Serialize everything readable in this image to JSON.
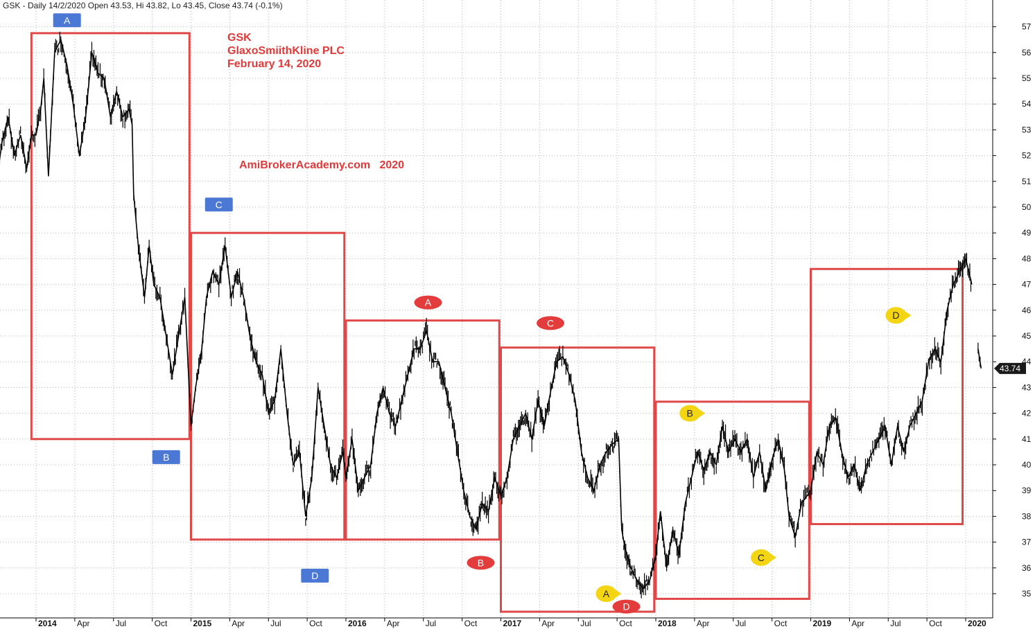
{
  "header": {
    "text": "GSK - Daily 14/2/2020 Open 43.53, Hi 43.82, Lo 43.45, Close 43.74 (-0.1%)"
  },
  "annotations": {
    "title_lines": [
      "GSK",
      "GlaxoSmiithKline PLC",
      "February 14, 2020"
    ],
    "watermark": "AmiBrokerAcademy.com   2020"
  },
  "price_tag": "43.74",
  "colors": {
    "price_line": "#000000",
    "box": "#e04848",
    "blue_label": "#4a78d4",
    "red_label": "#e23c3c",
    "yellow_label": "#f3d514",
    "grid": "#b5b5b5",
    "price_tag_bg": "#1a1a1a"
  },
  "chart_data": {
    "type": "line",
    "title": "GSK",
    "xlabel": "",
    "ylabel": "",
    "ylim": [
      34.5,
      57.5
    ],
    "grid": true,
    "y_ticks": [
      35,
      36,
      37,
      38,
      39,
      40,
      41,
      42,
      43,
      44,
      45,
      46,
      47,
      48,
      49,
      50,
      51,
      52,
      53,
      54,
      55,
      56,
      57
    ],
    "x_ticks": [
      {
        "label": "2014",
        "t": 2014.0,
        "year": true
      },
      {
        "label": "Apr",
        "t": 2014.25
      },
      {
        "label": "Jul",
        "t": 2014.5
      },
      {
        "label": "Oct",
        "t": 2014.75
      },
      {
        "label": "2015",
        "t": 2015.0,
        "year": true
      },
      {
        "label": "Apr",
        "t": 2015.25
      },
      {
        "label": "Jul",
        "t": 2015.5
      },
      {
        "label": "Oct",
        "t": 2015.75
      },
      {
        "label": "2016",
        "t": 2016.0,
        "year": true
      },
      {
        "label": "Apr",
        "t": 2016.25
      },
      {
        "label": "Jul",
        "t": 2016.5
      },
      {
        "label": "Oct",
        "t": 2016.75
      },
      {
        "label": "2017",
        "t": 2017.0,
        "year": true
      },
      {
        "label": "Apr",
        "t": 2017.25
      },
      {
        "label": "Jul",
        "t": 2017.5
      },
      {
        "label": "Oct",
        "t": 2017.75
      },
      {
        "label": "2018",
        "t": 2018.0,
        "year": true
      },
      {
        "label": "Apr",
        "t": 2018.25
      },
      {
        "label": "Jul",
        "t": 2018.5
      },
      {
        "label": "Oct",
        "t": 2018.75
      },
      {
        "label": "2019",
        "t": 2019.0,
        "year": true
      },
      {
        "label": "Apr",
        "t": 2019.25
      },
      {
        "label": "Jul",
        "t": 2019.5
      },
      {
        "label": "Oct",
        "t": 2019.75
      },
      {
        "label": "2020",
        "t": 2020.0,
        "year": true
      }
    ],
    "series": [
      {
        "values": [
          [
            2013.75,
            51.2
          ],
          [
            2013.78,
            52.5
          ],
          [
            2013.82,
            53.5
          ],
          [
            2013.86,
            52.0
          ],
          [
            2013.9,
            52.8
          ],
          [
            2013.94,
            51.5
          ],
          [
            2013.97,
            52.8
          ],
          [
            2014.0,
            52.8
          ],
          [
            2014.03,
            53.8
          ],
          [
            2014.05,
            55.0
          ],
          [
            2014.08,
            51.2
          ],
          [
            2014.12,
            56.0
          ],
          [
            2014.16,
            56.5
          ],
          [
            2014.2,
            55.5
          ],
          [
            2014.24,
            54.0
          ],
          [
            2014.28,
            52.0
          ],
          [
            2014.32,
            53.5
          ],
          [
            2014.36,
            56.0
          ],
          [
            2014.4,
            55.2
          ],
          [
            2014.44,
            55.0
          ],
          [
            2014.48,
            53.5
          ],
          [
            2014.52,
            54.5
          ],
          [
            2014.56,
            53.5
          ],
          [
            2014.6,
            53.8
          ],
          [
            2014.62,
            53.2
          ],
          [
            2014.63,
            50.5
          ],
          [
            2014.66,
            48.5
          ],
          [
            2014.7,
            46.5
          ],
          [
            2014.73,
            48.5
          ],
          [
            2014.76,
            47.0
          ],
          [
            2014.8,
            46.5
          ],
          [
            2014.84,
            45.0
          ],
          [
            2014.88,
            43.5
          ],
          [
            2014.92,
            45.0
          ],
          [
            2014.96,
            46.5
          ],
          [
            2015.0,
            41.5
          ],
          [
            2015.03,
            43.0
          ],
          [
            2015.07,
            44.5
          ],
          [
            2015.1,
            46.5
          ],
          [
            2015.14,
            47.5
          ],
          [
            2015.18,
            47.0
          ],
          [
            2015.22,
            48.5
          ],
          [
            2015.26,
            46.5
          ],
          [
            2015.3,
            47.5
          ],
          [
            2015.34,
            46.5
          ],
          [
            2015.38,
            45.0
          ],
          [
            2015.42,
            44.0
          ],
          [
            2015.46,
            43.5
          ],
          [
            2015.5,
            42.0
          ],
          [
            2015.54,
            42.5
          ],
          [
            2015.58,
            44.5
          ],
          [
            2015.62,
            42.0
          ],
          [
            2015.66,
            40.0
          ],
          [
            2015.7,
            40.5
          ],
          [
            2015.74,
            38.0
          ],
          [
            2015.78,
            39.5
          ],
          [
            2015.82,
            43.0
          ],
          [
            2015.86,
            41.5
          ],
          [
            2015.9,
            40.0
          ],
          [
            2015.94,
            39.5
          ],
          [
            2015.98,
            40.5
          ],
          [
            2016.0,
            39.5
          ],
          [
            2016.04,
            41.0
          ],
          [
            2016.08,
            39.0
          ],
          [
            2016.12,
            39.5
          ],
          [
            2016.16,
            40.0
          ],
          [
            2016.2,
            42.0
          ],
          [
            2016.24,
            43.0
          ],
          [
            2016.28,
            42.0
          ],
          [
            2016.32,
            41.5
          ],
          [
            2016.36,
            42.5
          ],
          [
            2016.4,
            43.5
          ],
          [
            2016.44,
            44.5
          ],
          [
            2016.48,
            44.5
          ],
          [
            2016.52,
            45.2
          ],
          [
            2016.56,
            44.0
          ],
          [
            2016.6,
            44.0
          ],
          [
            2016.64,
            43.0
          ],
          [
            2016.68,
            42.0
          ],
          [
            2016.72,
            40.5
          ],
          [
            2016.76,
            39.0
          ],
          [
            2016.8,
            38.0
          ],
          [
            2016.84,
            37.5
          ],
          [
            2016.88,
            38.5
          ],
          [
            2016.92,
            38.2
          ],
          [
            2016.96,
            39.5
          ],
          [
            2017.0,
            38.8
          ],
          [
            2017.04,
            39.5
          ],
          [
            2017.08,
            41.0
          ],
          [
            2017.12,
            41.5
          ],
          [
            2017.16,
            42.0
          ],
          [
            2017.2,
            41.0
          ],
          [
            2017.24,
            42.5
          ],
          [
            2017.28,
            41.5
          ],
          [
            2017.32,
            42.8
          ],
          [
            2017.36,
            44.0
          ],
          [
            2017.4,
            44.2
          ],
          [
            2017.44,
            43.5
          ],
          [
            2017.48,
            42.5
          ],
          [
            2017.52,
            40.5
          ],
          [
            2017.56,
            39.5
          ],
          [
            2017.6,
            39.0
          ],
          [
            2017.64,
            40.0
          ],
          [
            2017.68,
            40.5
          ],
          [
            2017.72,
            40.8
          ],
          [
            2017.76,
            41.0
          ],
          [
            2017.78,
            37.5
          ],
          [
            2017.8,
            36.8
          ],
          [
            2017.84,
            36.0
          ],
          [
            2017.88,
            35.5
          ],
          [
            2017.92,
            35.2
          ],
          [
            2017.96,
            35.5
          ],
          [
            2018.0,
            36.5
          ],
          [
            2018.03,
            38.2
          ],
          [
            2018.07,
            36.0
          ],
          [
            2018.11,
            37.5
          ],
          [
            2018.15,
            36.5
          ],
          [
            2018.19,
            38.5
          ],
          [
            2018.23,
            39.5
          ],
          [
            2018.27,
            40.5
          ],
          [
            2018.31,
            39.8
          ],
          [
            2018.35,
            40.5
          ],
          [
            2018.39,
            40.0
          ],
          [
            2018.43,
            41.5
          ],
          [
            2018.47,
            40.5
          ],
          [
            2018.51,
            41.0
          ],
          [
            2018.55,
            40.5
          ],
          [
            2018.59,
            41.0
          ],
          [
            2018.63,
            39.5
          ],
          [
            2018.67,
            40.5
          ],
          [
            2018.71,
            39.0
          ],
          [
            2018.75,
            40.2
          ],
          [
            2018.79,
            41.0
          ],
          [
            2018.83,
            39.8
          ],
          [
            2018.86,
            38.0
          ],
          [
            2018.9,
            37.2
          ],
          [
            2018.94,
            38.5
          ],
          [
            2019.0,
            39.0
          ],
          [
            2019.04,
            40.5
          ],
          [
            2019.08,
            40.0
          ],
          [
            2019.12,
            41.5
          ],
          [
            2019.16,
            41.8
          ],
          [
            2019.2,
            40.5
          ],
          [
            2019.24,
            39.5
          ],
          [
            2019.28,
            40.0
          ],
          [
            2019.32,
            39.0
          ],
          [
            2019.36,
            40.0
          ],
          [
            2019.4,
            40.5
          ],
          [
            2019.44,
            41.0
          ],
          [
            2019.48,
            41.5
          ],
          [
            2019.52,
            40.0
          ],
          [
            2019.56,
            41.5
          ],
          [
            2019.6,
            40.5
          ],
          [
            2019.64,
            41.5
          ],
          [
            2019.68,
            42.0
          ],
          [
            2019.72,
            42.5
          ],
          [
            2019.76,
            44.0
          ],
          [
            2019.8,
            44.5
          ],
          [
            2019.84,
            44.0
          ],
          [
            2019.88,
            46.0
          ],
          [
            2019.92,
            47.0
          ],
          [
            2019.96,
            47.5
          ],
          [
            2020.0,
            48.0
          ],
          [
            2020.04,
            47.0
          ]
        ]
      },
      {
        "values": [
          [
            2020.08,
            44.5
          ],
          [
            2020.1,
            43.74
          ]
        ]
      }
    ],
    "boxes": [
      {
        "t0": 2013.97,
        "t1": 2014.99,
        "low": 41.0,
        "high": 56.75
      },
      {
        "t0": 2015.0,
        "t1": 2015.99,
        "low": 37.1,
        "high": 49.0
      },
      {
        "t0": 2016.0,
        "t1": 2016.99,
        "low": 37.1,
        "high": 45.6
      },
      {
        "t0": 2017.0,
        "t1": 2017.99,
        "low": 34.3,
        "high": 44.55
      },
      {
        "t0": 2018.0,
        "t1": 2018.99,
        "low": 34.8,
        "high": 42.45
      },
      {
        "t0": 2019.0,
        "t1": 2019.98,
        "low": 37.7,
        "high": 47.6
      }
    ],
    "point_labels": [
      {
        "text": "A",
        "t": 2014.2,
        "y": 57.25,
        "style": "blue"
      },
      {
        "text": "C",
        "t": 2015.18,
        "y": 50.1,
        "style": "blue"
      },
      {
        "text": "B",
        "t": 2014.84,
        "y": 40.3,
        "style": "blue"
      },
      {
        "text": "D",
        "t": 2015.8,
        "y": 35.7,
        "style": "blue"
      },
      {
        "text": "A",
        "t": 2016.53,
        "y": 46.3,
        "style": "red"
      },
      {
        "text": "C",
        "t": 2017.32,
        "y": 45.5,
        "style": "red"
      },
      {
        "text": "B",
        "t": 2016.87,
        "y": 36.2,
        "style": "red"
      },
      {
        "text": "D",
        "t": 2017.81,
        "y": 34.5,
        "style": "red"
      },
      {
        "text": "A",
        "t": 2017.68,
        "y": 35.0,
        "style": "yellow"
      },
      {
        "text": "B",
        "t": 2018.22,
        "y": 42.0,
        "style": "yellow"
      },
      {
        "text": "C",
        "t": 2018.68,
        "y": 36.4,
        "style": "yellow"
      },
      {
        "text": "D",
        "t": 2019.55,
        "y": 45.8,
        "style": "yellow"
      }
    ]
  }
}
